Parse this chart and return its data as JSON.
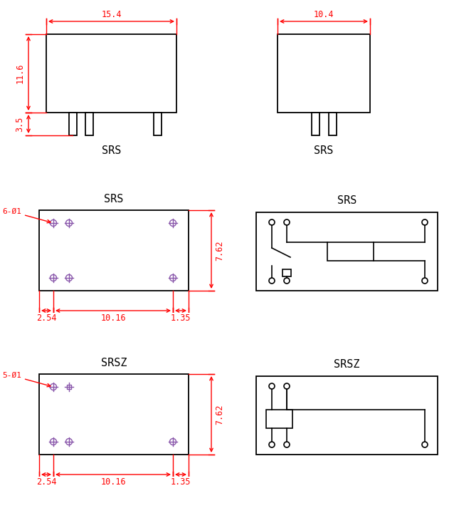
{
  "bg_color": "white",
  "line_color": "black",
  "dim_color": "red",
  "pin_color": "#8855aa",
  "title_fontsize": 11,
  "dim_fontsize": 8.5,
  "label_fontsize": 8,
  "srs_label": "SRS",
  "srsz_label": "SRSZ",
  "dim_15_4": "15.4",
  "dim_10_4": "10.4",
  "dim_11_6": "11.6",
  "dim_3_5": "3.5",
  "dim_7_62": "7.62",
  "dim_2_54": "2.54",
  "dim_10_16": "10.16",
  "dim_1_35": "1.35",
  "label_6pin": "6-Ø1",
  "label_5pin": "5-Ø1",
  "lw_main": 1.3,
  "lw_dim": 1.0,
  "lw_schem": 1.2
}
